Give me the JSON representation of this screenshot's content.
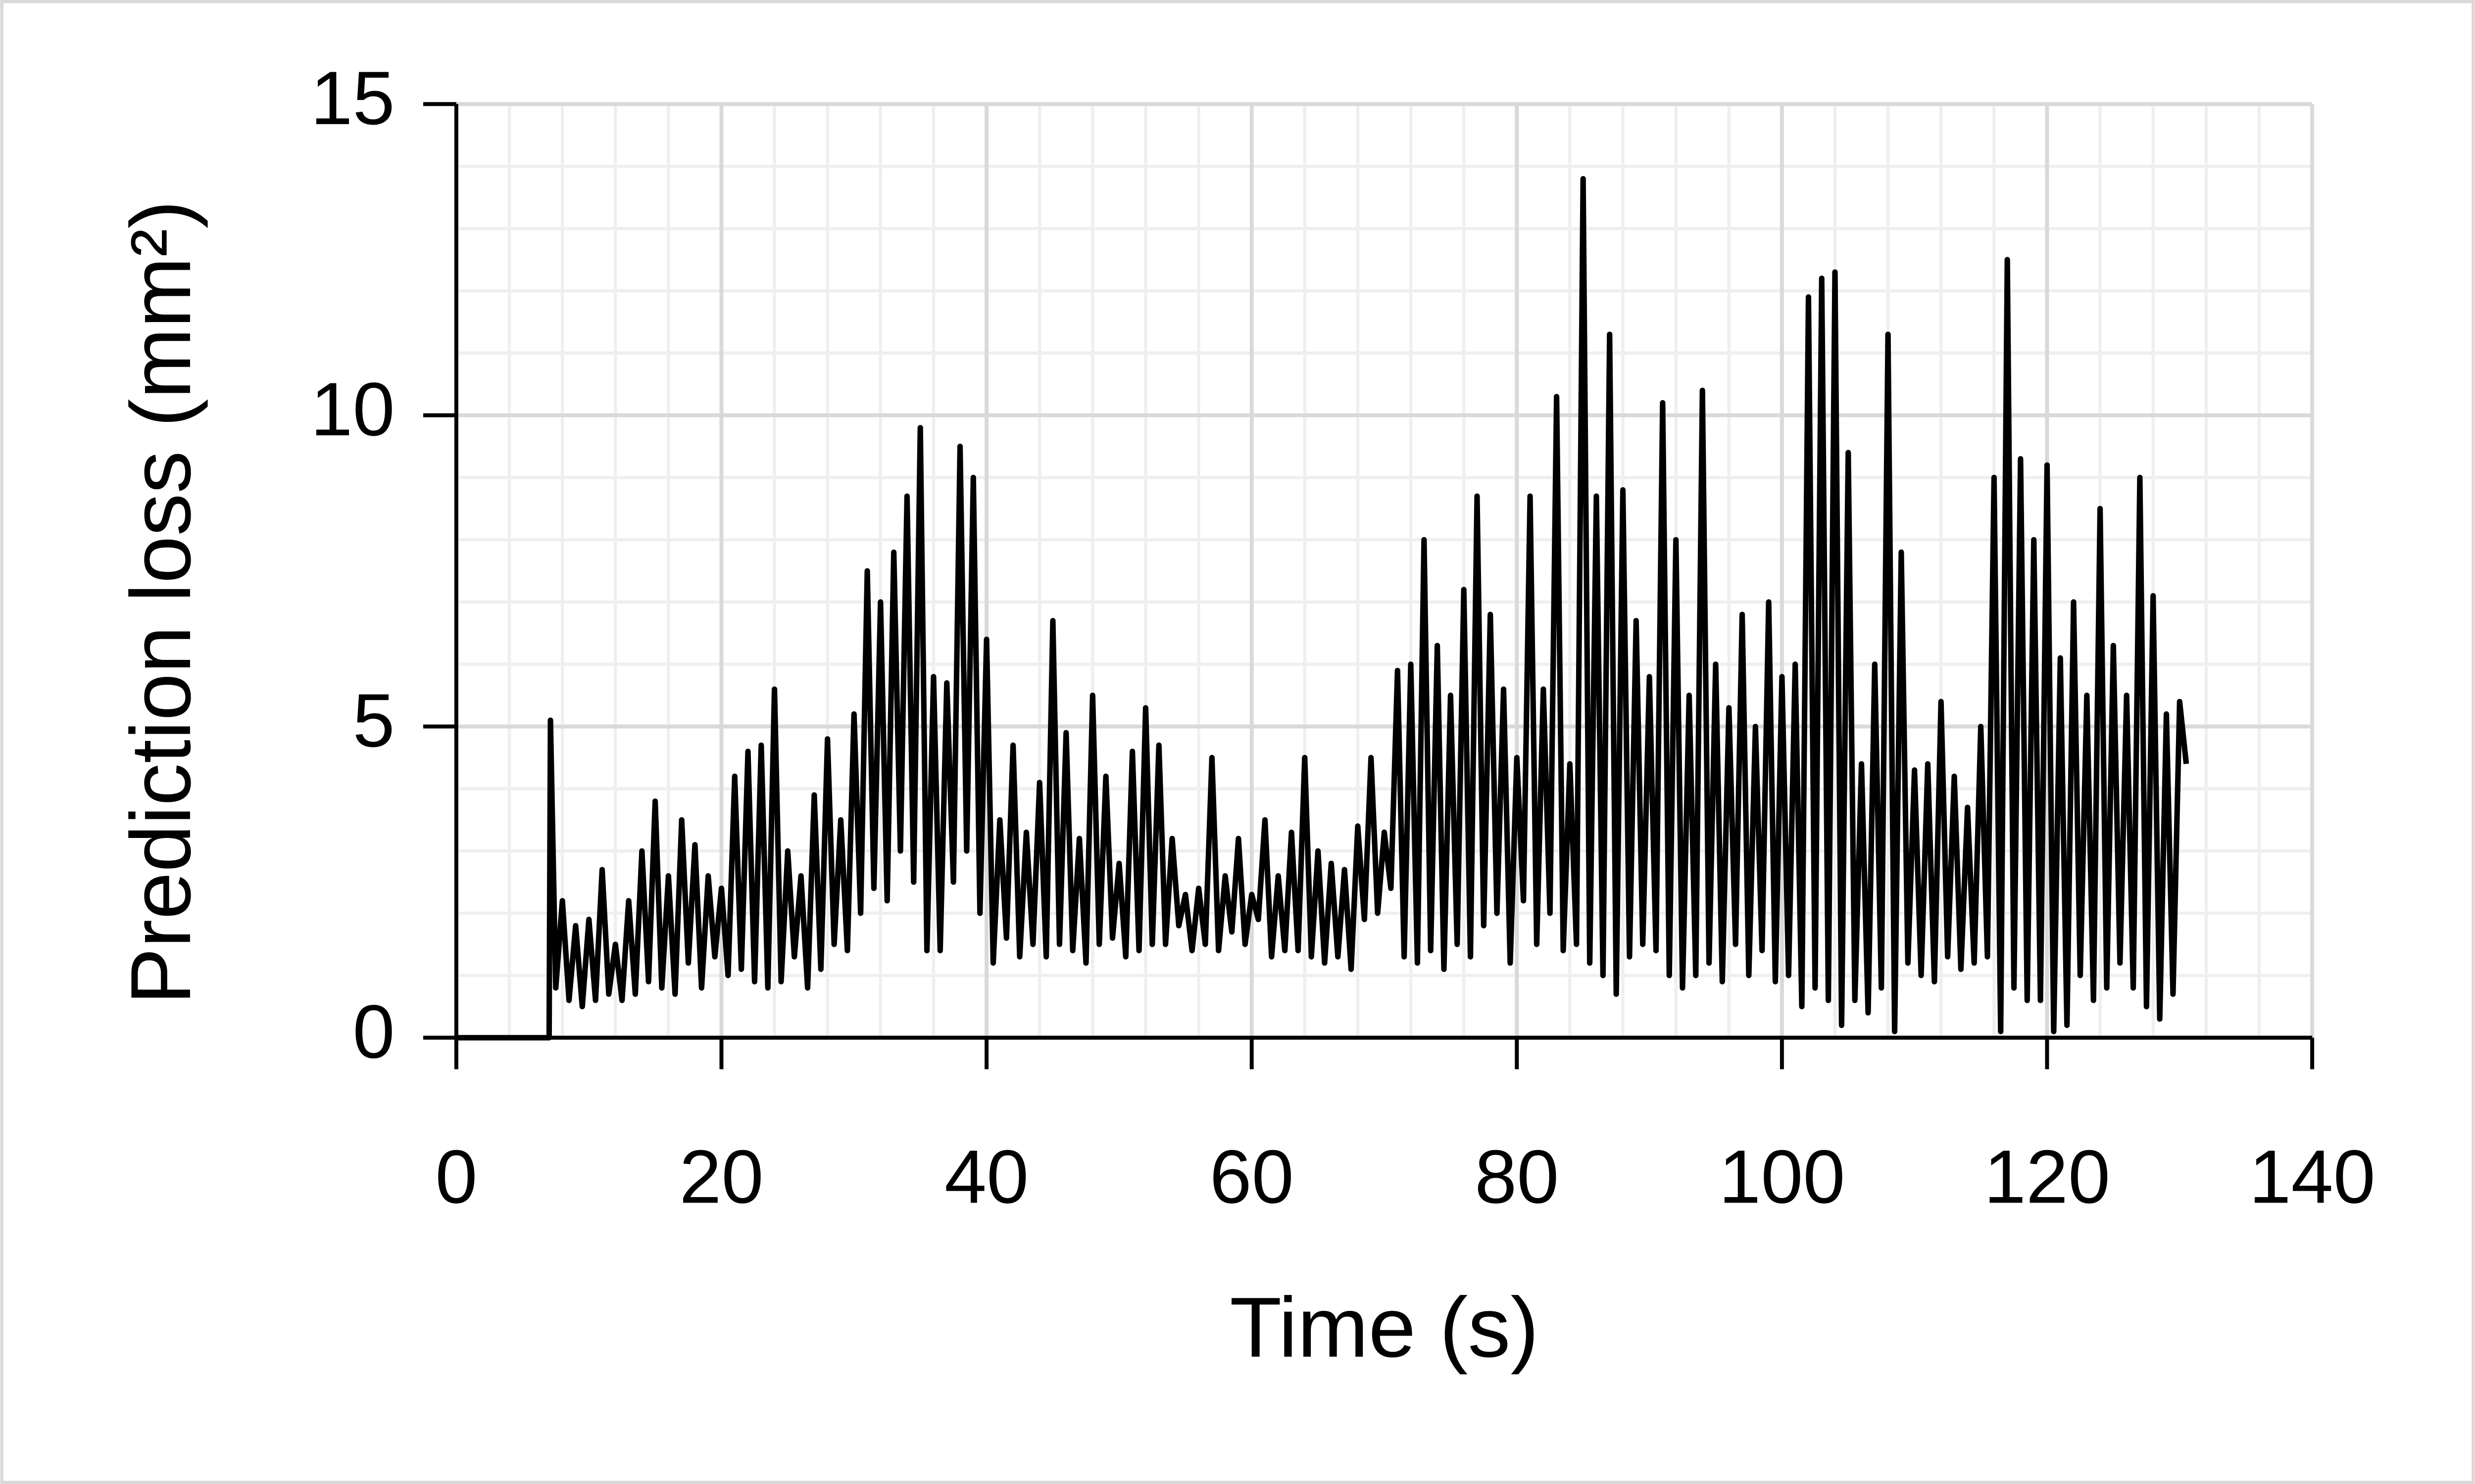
{
  "chart_data": {
    "type": "line",
    "x_label": "Time (s)",
    "y_label": "Prediction loss (mm²)",
    "color": "#000000",
    "grid": true,
    "xlim": [
      0,
      140
    ],
    "ylim": [
      0,
      15
    ],
    "xticks": [
      0,
      20,
      40,
      60,
      80,
      100,
      120,
      140
    ],
    "yticks": [
      0,
      5,
      10,
      15
    ],
    "minor_xticks": [
      4,
      8,
      12,
      16,
      24,
      28,
      32,
      36,
      44,
      48,
      52,
      56,
      64,
      68,
      72,
      76,
      84,
      88,
      92,
      96,
      104,
      108,
      112,
      116,
      124,
      128,
      132,
      136
    ],
    "minor_yticks": [
      1,
      2,
      3,
      4,
      6,
      7,
      8,
      9,
      11,
      12,
      13,
      14
    ],
    "x": [
      0,
      7,
      7.1,
      7.5,
      8,
      8.5,
      9,
      9.5,
      10,
      10.5,
      11,
      11.5,
      12,
      12.5,
      13,
      13.5,
      14,
      14.5,
      15,
      15.5,
      16,
      16.5,
      17,
      17.5,
      18,
      18.5,
      19,
      19.5,
      20,
      20.5,
      21,
      21.5,
      22,
      22.5,
      23,
      23.5,
      24,
      24.5,
      25,
      25.5,
      26,
      26.5,
      27,
      27.5,
      28,
      28.5,
      29,
      29.5,
      30,
      30.5,
      31,
      31.5,
      32,
      32.5,
      33,
      33.5,
      34,
      34.5,
      35,
      35.5,
      36,
      36.5,
      37,
      37.5,
      38,
      38.5,
      39,
      39.5,
      40,
      40.5,
      41,
      41.5,
      42,
      42.5,
      43,
      43.5,
      44,
      44.5,
      45,
      45.5,
      46,
      46.5,
      47,
      47.5,
      48,
      48.5,
      49,
      49.5,
      50,
      50.5,
      51,
      51.5,
      52,
      52.5,
      53,
      53.5,
      54,
      54.5,
      55,
      55.5,
      56,
      56.5,
      57,
      57.5,
      58,
      58.5,
      59,
      59.5,
      60,
      60.5,
      61,
      61.5,
      62,
      62.5,
      63,
      63.5,
      64,
      64.5,
      65,
      65.5,
      66,
      66.5,
      67,
      67.5,
      68,
      68.5,
      69,
      69.5,
      70,
      70.5,
      71,
      71.5,
      72,
      72.5,
      73,
      73.5,
      74,
      74.5,
      75,
      75.5,
      76,
      76.5,
      77,
      77.5,
      78,
      78.5,
      79,
      79.5,
      80,
      80.5,
      81,
      81.5,
      82,
      82.5,
      83,
      83.5,
      84,
      84.5,
      85,
      85.5,
      86,
      86.5,
      87,
      87.5,
      88,
      88.5,
      89,
      89.5,
      90,
      90.5,
      91,
      91.5,
      92,
      92.5,
      93,
      93.5,
      94,
      94.5,
      95,
      95.5,
      96,
      96.5,
      97,
      97.5,
      98,
      98.5,
      99,
      99.5,
      100,
      100.5,
      101,
      101.5,
      102,
      102.5,
      103,
      103.5,
      104,
      104.5,
      105,
      105.5,
      106,
      106.5,
      107,
      107.5,
      108,
      108.5,
      109,
      109.5,
      110,
      110.5,
      111,
      111.5,
      112,
      112.5,
      113,
      113.5,
      114,
      114.5,
      115,
      115.5,
      116,
      116.5,
      117,
      117.5,
      118,
      118.5,
      119,
      119.5,
      120,
      120.5,
      121,
      121.5,
      122,
      122.5,
      123,
      123.5,
      124,
      124.5,
      125,
      125.5,
      126,
      126.5,
      127,
      127.5,
      128,
      128.5,
      129,
      129.5,
      130,
      130.5
    ],
    "values": [
      0,
      0,
      5.1,
      0.8,
      2.2,
      0.6,
      1.8,
      0.5,
      1.9,
      0.6,
      2.7,
      0.7,
      1.5,
      0.6,
      2.2,
      0.7,
      3.0,
      0.9,
      3.8,
      0.8,
      2.6,
      0.7,
      3.5,
      1.2,
      3.1,
      0.8,
      2.6,
      1.3,
      2.4,
      1.0,
      4.2,
      1.1,
      4.6,
      0.9,
      4.7,
      0.8,
      5.6,
      0.9,
      3.0,
      1.3,
      2.6,
      0.8,
      3.9,
      1.1,
      4.8,
      1.5,
      3.5,
      1.4,
      5.2,
      2.0,
      7.5,
      2.4,
      7.0,
      2.2,
      7.8,
      3.0,
      8.7,
      2.5,
      9.8,
      1.4,
      5.8,
      1.4,
      5.7,
      2.5,
      9.5,
      3.0,
      9.0,
      2.0,
      6.4,
      1.2,
      3.5,
      1.6,
      4.7,
      1.3,
      3.3,
      1.5,
      4.1,
      1.3,
      6.7,
      1.5,
      4.9,
      1.4,
      3.2,
      1.2,
      5.5,
      1.5,
      4.2,
      1.6,
      2.8,
      1.3,
      4.6,
      1.4,
      5.3,
      1.5,
      4.7,
      1.5,
      3.2,
      1.8,
      2.3,
      1.4,
      2.4,
      1.5,
      4.5,
      1.4,
      2.6,
      1.7,
      3.2,
      1.5,
      2.3,
      1.9,
      3.5,
      1.3,
      2.6,
      1.4,
      3.3,
      1.4,
      4.5,
      1.3,
      3.0,
      1.2,
      2.8,
      1.3,
      2.7,
      1.1,
      3.4,
      1.9,
      4.5,
      2.0,
      3.3,
      2.4,
      5.9,
      1.3,
      6.0,
      1.2,
      8.0,
      1.4,
      6.3,
      1.1,
      5.5,
      1.5,
      7.2,
      1.3,
      8.7,
      1.8,
      6.8,
      2.0,
      5.6,
      1.2,
      4.5,
      2.2,
      8.7,
      1.5,
      5.6,
      2.0,
      10.3,
      1.4,
      4.4,
      1.5,
      13.8,
      1.2,
      8.7,
      1.0,
      11.3,
      0.7,
      8.8,
      1.3,
      6.7,
      1.5,
      5.8,
      1.4,
      10.2,
      1.0,
      8.0,
      0.8,
      5.5,
      1.0,
      10.4,
      1.2,
      6.0,
      0.9,
      5.3,
      1.5,
      6.8,
      1.0,
      5.0,
      1.4,
      7.0,
      0.9,
      5.8,
      1.0,
      6.0,
      0.5,
      11.9,
      0.8,
      12.2,
      0.6,
      12.3,
      0.2,
      9.4,
      0.6,
      4.4,
      0.4,
      6.0,
      0.8,
      11.3,
      0.1,
      7.8,
      1.2,
      4.3,
      1.0,
      4.4,
      0.9,
      5.4,
      1.3,
      4.2,
      1.1,
      3.7,
      1.2,
      5.0,
      1.3,
      9.0,
      0.1,
      12.5,
      0.8,
      9.3,
      0.6,
      8.0,
      0.6,
      9.2,
      0.1,
      6.1,
      0.2,
      7.0,
      1.0,
      5.5,
      0.6,
      8.5,
      0.8,
      6.3,
      1.2,
      5.5,
      0.8,
      9.0,
      0.5,
      7.1,
      0.3,
      5.2,
      0.7,
      5.4,
      4.4
    ]
  }
}
